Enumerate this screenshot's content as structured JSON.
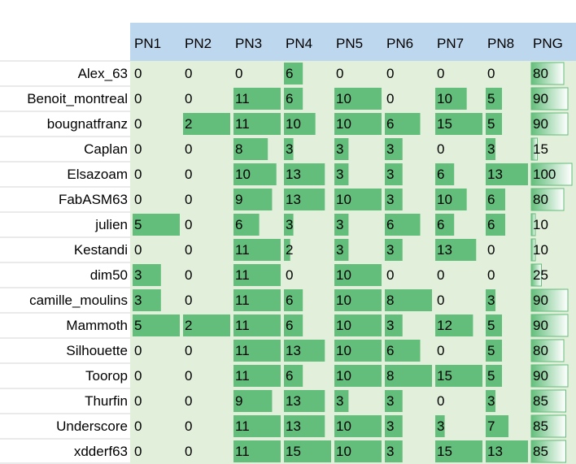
{
  "table": {
    "columns": [
      "PN1",
      "PN2",
      "PN3",
      "PN4",
      "PN5",
      "PN6",
      "PN7",
      "PN8",
      "PNG"
    ],
    "rows": [
      {
        "name": "Alex_63",
        "values": [
          0,
          0,
          0,
          6,
          0,
          0,
          0,
          0,
          80
        ]
      },
      {
        "name": "Benoit_montreal",
        "values": [
          0,
          0,
          11,
          6,
          10,
          0,
          10,
          5,
          90
        ]
      },
      {
        "name": "bougnatfranz",
        "values": [
          0,
          2,
          11,
          10,
          10,
          6,
          15,
          5,
          90
        ]
      },
      {
        "name": "Caplan",
        "values": [
          0,
          0,
          8,
          3,
          3,
          3,
          0,
          3,
          15
        ]
      },
      {
        "name": "Elsazoam",
        "values": [
          0,
          0,
          10,
          13,
          3,
          3,
          6,
          13,
          100
        ]
      },
      {
        "name": "FabASM63",
        "values": [
          0,
          0,
          9,
          13,
          10,
          3,
          10,
          6,
          80
        ]
      },
      {
        "name": "julien",
        "values": [
          5,
          0,
          6,
          3,
          3,
          6,
          6,
          6,
          10
        ]
      },
      {
        "name": "Kestandi",
        "values": [
          0,
          0,
          11,
          2,
          3,
          3,
          13,
          0,
          10
        ]
      },
      {
        "name": "dim50",
        "values": [
          3,
          0,
          11,
          0,
          10,
          0,
          0,
          0,
          25
        ]
      },
      {
        "name": "camille_moulins",
        "values": [
          3,
          0,
          11,
          6,
          10,
          8,
          0,
          3,
          90
        ]
      },
      {
        "name": "Mammoth",
        "values": [
          5,
          2,
          11,
          6,
          10,
          3,
          12,
          5,
          90
        ]
      },
      {
        "name": "Silhouette",
        "values": [
          0,
          0,
          11,
          13,
          10,
          6,
          0,
          5,
          80
        ]
      },
      {
        "name": "Toorop",
        "values": [
          0,
          0,
          11,
          6,
          10,
          8,
          15,
          5,
          90
        ]
      },
      {
        "name": "Thurfin",
        "values": [
          0,
          0,
          9,
          13,
          3,
          3,
          0,
          3,
          85
        ]
      },
      {
        "name": "Underscore",
        "values": [
          0,
          0,
          11,
          13,
          10,
          3,
          3,
          7,
          85
        ]
      },
      {
        "name": "xdderf63",
        "values": [
          0,
          0,
          11,
          15,
          10,
          3,
          15,
          13,
          85
        ]
      }
    ]
  }
}
